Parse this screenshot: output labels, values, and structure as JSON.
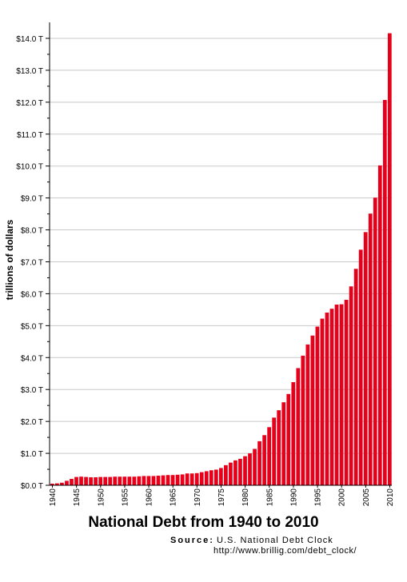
{
  "chart_data": {
    "type": "bar",
    "title": "National Debt from 1940 to 2010",
    "ylabel": "trillions of dollars",
    "xlabel": "",
    "source_label": "Source:",
    "source_text": "U.S. National Debt Clock",
    "source_url": "http://www.brillig.com/debt_clock/",
    "ylim": [
      0,
      14.5
    ],
    "y_ticks": [
      0,
      1,
      2,
      3,
      4,
      5,
      6,
      7,
      8,
      9,
      10,
      11,
      12,
      13,
      14
    ],
    "y_tick_labels": [
      "$0.0 T",
      "$1.0 T",
      "$2.0 T",
      "$3.0 T",
      "$4.0 T",
      "$5.0 T",
      "$6.0 T",
      "$7.0 T",
      "$8.0 T",
      "$9.0 T",
      "$10.0 T",
      "$11.0 T",
      "$12.0 T",
      "$13.0 T",
      "$14.0 T"
    ],
    "x_tick_labels": [
      "1940",
      "1945",
      "1950",
      "1955",
      "1960",
      "1965",
      "1970",
      "1975",
      "1980",
      "1985",
      "1990",
      "1995",
      "2000",
      "2005",
      "2010"
    ],
    "grid": true,
    "bar_color": "#e8001a",
    "categories": [
      "1940",
      "1941",
      "1942",
      "1943",
      "1944",
      "1945",
      "1946",
      "1947",
      "1948",
      "1949",
      "1950",
      "1951",
      "1952",
      "1953",
      "1954",
      "1955",
      "1956",
      "1957",
      "1958",
      "1959",
      "1960",
      "1961",
      "1962",
      "1963",
      "1964",
      "1965",
      "1966",
      "1967",
      "1968",
      "1969",
      "1970",
      "1971",
      "1972",
      "1973",
      "1974",
      "1975",
      "1976",
      "1977",
      "1978",
      "1979",
      "1980",
      "1981",
      "1982",
      "1983",
      "1984",
      "1985",
      "1986",
      "1987",
      "1988",
      "1989",
      "1990",
      "1991",
      "1992",
      "1993",
      "1994",
      "1995",
      "1996",
      "1997",
      "1998",
      "1999",
      "2000",
      "2001",
      "2002",
      "2003",
      "2004",
      "2005",
      "2006",
      "2007",
      "2008",
      "2009",
      "2010"
    ],
    "values": [
      0.05,
      0.06,
      0.08,
      0.14,
      0.2,
      0.26,
      0.27,
      0.26,
      0.25,
      0.25,
      0.26,
      0.26,
      0.26,
      0.27,
      0.27,
      0.27,
      0.27,
      0.27,
      0.28,
      0.29,
      0.29,
      0.29,
      0.3,
      0.31,
      0.32,
      0.32,
      0.33,
      0.34,
      0.37,
      0.37,
      0.38,
      0.41,
      0.44,
      0.47,
      0.49,
      0.54,
      0.63,
      0.71,
      0.78,
      0.83,
      0.91,
      1.0,
      1.14,
      1.38,
      1.57,
      1.82,
      2.12,
      2.35,
      2.6,
      2.86,
      3.23,
      3.67,
      4.06,
      4.41,
      4.69,
      4.97,
      5.22,
      5.41,
      5.53,
      5.66,
      5.67,
      5.81,
      6.23,
      6.78,
      7.38,
      7.93,
      8.51,
      9.01,
      10.02,
      12.07,
      14.16
    ]
  }
}
